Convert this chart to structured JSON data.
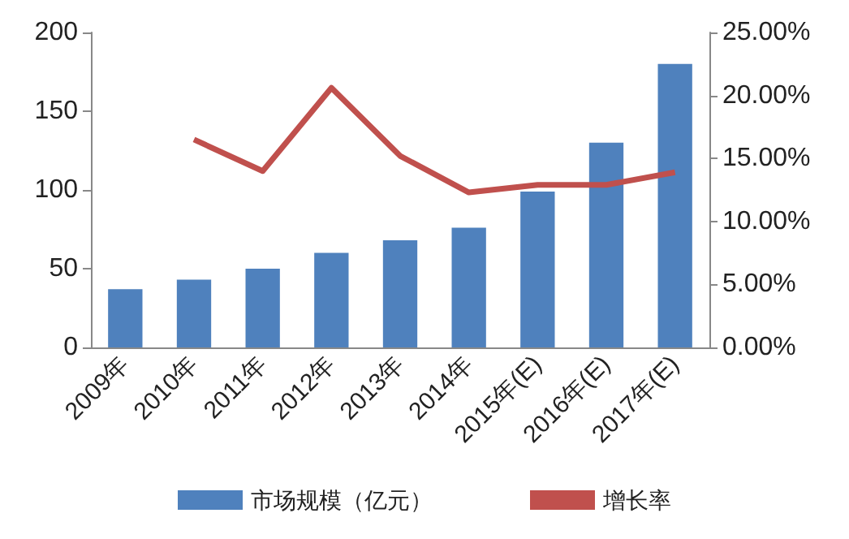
{
  "chart_data": {
    "type": "bar",
    "categories": [
      "2009年",
      "2010年",
      "2011年",
      "2012年",
      "2013年",
      "2014年",
      "2015年(E)",
      "2016年(E)",
      "2017年(E)"
    ],
    "series": [
      {
        "name": "市场规模（亿元）",
        "color": "#4f81bd",
        "values": [
          37,
          43,
          50,
          60,
          68,
          76,
          99,
          130,
          180
        ]
      },
      {
        "name": "增长率",
        "type": "line",
        "axis": "y2",
        "color": "#c0504d",
        "values": [
          null,
          16.5,
          14.0,
          20.6,
          15.2,
          12.3,
          12.9,
          12.9,
          13.9
        ]
      }
    ],
    "ylim": [
      0,
      200
    ],
    "yticks": [
      0,
      50,
      100,
      150,
      200
    ],
    "y2lim": [
      0,
      25
    ],
    "y2ticks": [
      {
        "value": 0,
        "label": "0.00%"
      },
      {
        "value": 5,
        "label": "5.00%"
      },
      {
        "value": 10,
        "label": "10.00%"
      },
      {
        "value": 15,
        "label": "15.00%"
      },
      {
        "value": 20,
        "label": "20.00%"
      },
      {
        "value": 25,
        "label": "25.00%"
      }
    ],
    "grid": false,
    "legend": "bottom",
    "marker": "none"
  }
}
